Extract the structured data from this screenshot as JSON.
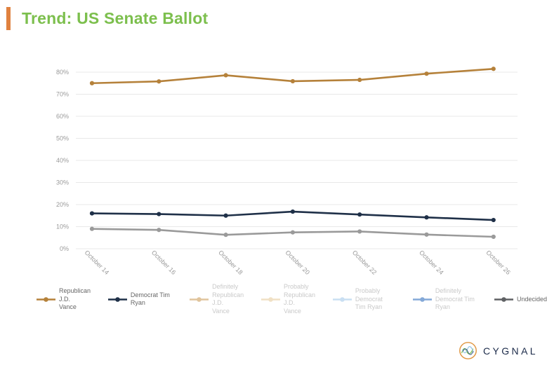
{
  "header": {
    "title": "Trend: US Senate Ballot",
    "accent_color": "#E0813F",
    "title_color": "#7CBF4D"
  },
  "chart_data": {
    "type": "line",
    "title": "Trend: US Senate Ballot",
    "x": [
      "October 14",
      "October 16",
      "October 18",
      "October 20",
      "October 22",
      "October 24",
      "October 26"
    ],
    "ylim": [
      0,
      80
    ],
    "yticks": [
      "0%",
      "10%",
      "20%",
      "30%",
      "40%",
      "50%",
      "60%",
      "70%",
      "80%"
    ],
    "grid": true,
    "legend_position": "bottom",
    "series": [
      {
        "name": "Republican J.D. Vance",
        "legend_label": "Republican J.D.\nVance",
        "color": "#B5813A",
        "visible": true,
        "values": [
          75.0,
          75.8,
          78.6,
          75.9,
          76.5,
          79.3,
          81.5
        ]
      },
      {
        "name": "Democrat Tim Ryan",
        "legend_label": "Democrat Tim Ryan",
        "color": "#1F3048",
        "visible": true,
        "values": [
          16.0,
          15.7,
          15.0,
          16.8,
          15.5,
          14.2,
          13.0
        ]
      },
      {
        "name": "Definitely Republican J.D. Vance",
        "legend_label": "Definitely\nRepublican J.D.\nVance",
        "color": "#E0C49C",
        "visible": false
      },
      {
        "name": "Probably Republican J.D. Vance",
        "legend_label": "Probably\nRepublican J.D.\nVance",
        "color": "#F0E0C4",
        "visible": false
      },
      {
        "name": "Probably Democrat Tim Ryan",
        "legend_label": "Probably Democrat\nTim Ryan",
        "color": "#C9DFF2",
        "visible": false
      },
      {
        "name": "Definitely Democrat Tim Ryan",
        "legend_label": "Definitely\nDemocrat Tim Ryan",
        "color": "#84A9D8",
        "visible": false
      },
      {
        "name": "Undecided",
        "legend_label": "Undecided",
        "color": "#9A9A9A",
        "legend_color": "#5F6164",
        "visible": true,
        "values": [
          9.0,
          8.5,
          6.3,
          7.4,
          7.8,
          6.4,
          5.4
        ]
      }
    ]
  },
  "footer": {
    "logo_text": "CYGNAL"
  }
}
